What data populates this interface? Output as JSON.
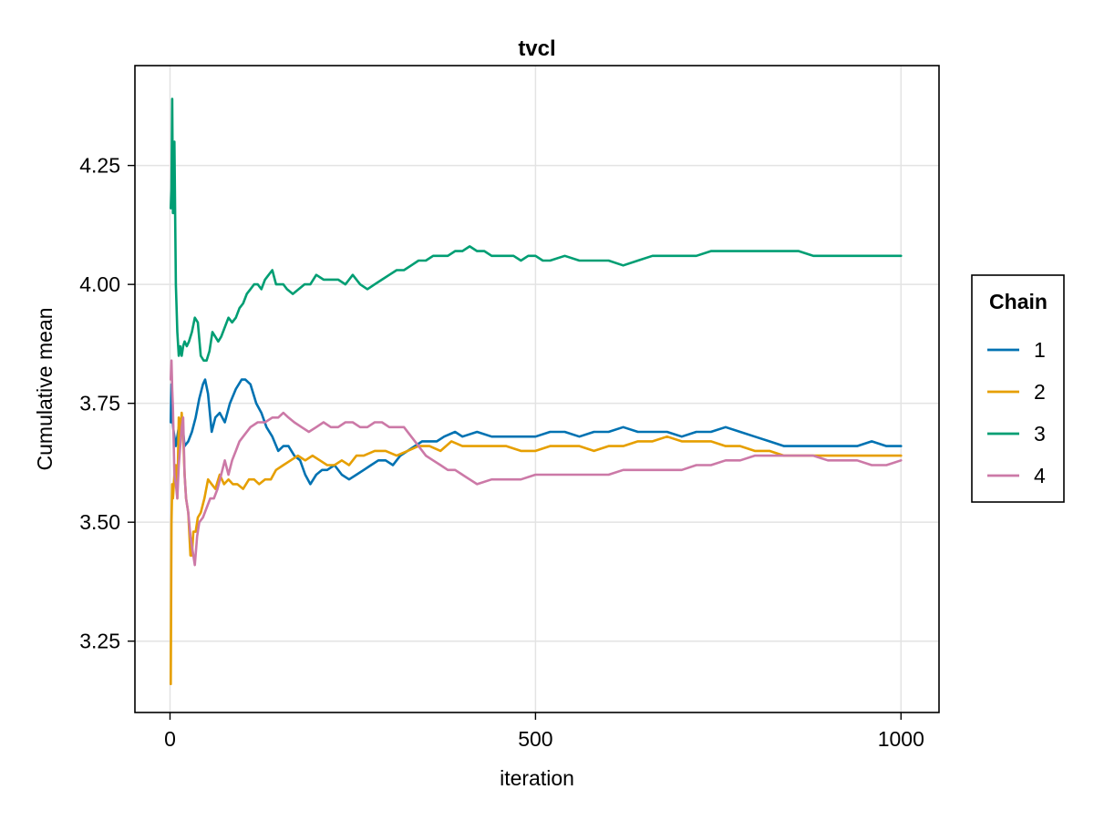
{
  "chart_data": {
    "type": "line",
    "title": "tvcl",
    "xlabel": "iteration",
    "ylabel": "Cumulative mean",
    "xlim": [
      -48,
      1052
    ],
    "ylim": [
      3.1,
      4.46
    ],
    "xticks": [
      0,
      500,
      1000
    ],
    "xtick_labels": [
      "0",
      "500",
      "1000"
    ],
    "yticks": [
      3.25,
      3.5,
      3.75,
      4.0,
      4.25
    ],
    "ytick_labels": [
      "3.25",
      "3.50",
      "3.75",
      "4.00",
      "4.25"
    ],
    "grid": true,
    "legend": {
      "title": "Chain",
      "position": "right"
    },
    "series": [
      {
        "name": "1",
        "color": "#0072b2",
        "x": [
          1,
          2,
          3,
          5,
          8,
          12,
          16,
          20,
          25,
          30,
          35,
          40,
          45,
          48,
          52,
          57,
          62,
          68,
          75,
          82,
          90,
          98,
          103,
          110,
          118,
          125,
          132,
          140,
          148,
          155,
          162,
          170,
          178,
          185,
          192,
          200,
          208,
          215,
          225,
          235,
          245,
          255,
          265,
          275,
          285,
          295,
          305,
          315,
          325,
          335,
          345,
          355,
          365,
          375,
          390,
          400,
          420,
          440,
          460,
          480,
          500,
          520,
          540,
          560,
          580,
          600,
          620,
          640,
          660,
          680,
          700,
          720,
          740,
          760,
          780,
          800,
          820,
          840,
          860,
          880,
          900,
          920,
          940,
          960,
          980,
          1000
        ],
        "y": [
          3.71,
          3.79,
          3.72,
          3.69,
          3.66,
          3.7,
          3.72,
          3.66,
          3.67,
          3.69,
          3.72,
          3.76,
          3.79,
          3.8,
          3.77,
          3.69,
          3.72,
          3.73,
          3.71,
          3.75,
          3.78,
          3.8,
          3.8,
          3.79,
          3.75,
          3.73,
          3.7,
          3.68,
          3.65,
          3.66,
          3.66,
          3.64,
          3.63,
          3.6,
          3.58,
          3.6,
          3.61,
          3.61,
          3.62,
          3.6,
          3.59,
          3.6,
          3.61,
          3.62,
          3.63,
          3.63,
          3.62,
          3.64,
          3.65,
          3.66,
          3.67,
          3.67,
          3.67,
          3.68,
          3.69,
          3.68,
          3.69,
          3.68,
          3.68,
          3.68,
          3.68,
          3.69,
          3.69,
          3.68,
          3.69,
          3.69,
          3.7,
          3.69,
          3.69,
          3.69,
          3.68,
          3.69,
          3.69,
          3.7,
          3.69,
          3.68,
          3.67,
          3.66,
          3.66,
          3.66,
          3.66,
          3.66,
          3.66,
          3.67,
          3.66,
          3.66
        ]
      },
      {
        "name": "2",
        "color": "#e69f00",
        "x": [
          1,
          2,
          3,
          4,
          6,
          8,
          10,
          12,
          14,
          16,
          18,
          20,
          22,
          25,
          28,
          30,
          32,
          35,
          38,
          42,
          47,
          52,
          57,
          62,
          68,
          74,
          80,
          86,
          92,
          100,
          108,
          115,
          122,
          130,
          138,
          145,
          155,
          165,
          175,
          185,
          195,
          205,
          215,
          225,
          235,
          245,
          255,
          265,
          280,
          295,
          310,
          325,
          340,
          355,
          370,
          385,
          400,
          420,
          440,
          460,
          480,
          500,
          520,
          540,
          560,
          580,
          600,
          620,
          640,
          660,
          680,
          700,
          720,
          740,
          760,
          780,
          800,
          820,
          840,
          860,
          880,
          900,
          920,
          940,
          960,
          980,
          1000
        ],
        "y": [
          3.16,
          3.5,
          3.58,
          3.55,
          3.6,
          3.62,
          3.55,
          3.72,
          3.68,
          3.73,
          3.68,
          3.6,
          3.55,
          3.52,
          3.43,
          3.43,
          3.48,
          3.48,
          3.51,
          3.52,
          3.55,
          3.59,
          3.58,
          3.57,
          3.6,
          3.58,
          3.59,
          3.58,
          3.58,
          3.57,
          3.59,
          3.59,
          3.58,
          3.59,
          3.59,
          3.61,
          3.62,
          3.63,
          3.64,
          3.63,
          3.64,
          3.63,
          3.62,
          3.62,
          3.63,
          3.62,
          3.64,
          3.64,
          3.65,
          3.65,
          3.64,
          3.65,
          3.66,
          3.66,
          3.65,
          3.67,
          3.66,
          3.66,
          3.66,
          3.66,
          3.65,
          3.65,
          3.66,
          3.66,
          3.66,
          3.65,
          3.66,
          3.66,
          3.67,
          3.67,
          3.68,
          3.67,
          3.67,
          3.67,
          3.66,
          3.66,
          3.65,
          3.65,
          3.64,
          3.64,
          3.64,
          3.64,
          3.64,
          3.64,
          3.64,
          3.64,
          3.64
        ]
      },
      {
        "name": "3",
        "color": "#009e73",
        "x": [
          1,
          2,
          3,
          4,
          5,
          6,
          8,
          10,
          12,
          14,
          16,
          18,
          20,
          23,
          26,
          30,
          34,
          38,
          42,
          46,
          50,
          54,
          58,
          62,
          66,
          70,
          75,
          80,
          85,
          90,
          95,
          100,
          105,
          110,
          115,
          120,
          125,
          130,
          135,
          140,
          145,
          150,
          155,
          160,
          168,
          176,
          184,
          192,
          200,
          210,
          220,
          230,
          240,
          250,
          260,
          270,
          280,
          290,
          300,
          310,
          320,
          330,
          340,
          350,
          360,
          370,
          380,
          390,
          400,
          410,
          420,
          430,
          440,
          450,
          460,
          470,
          480,
          490,
          500,
          510,
          520,
          540,
          560,
          580,
          600,
          620,
          640,
          660,
          680,
          700,
          720,
          740,
          760,
          780,
          800,
          820,
          840,
          860,
          880,
          900,
          920,
          940,
          960,
          980,
          1000
        ],
        "y": [
          4.16,
          4.2,
          4.39,
          4.15,
          4.15,
          4.3,
          4.0,
          3.9,
          3.85,
          3.87,
          3.85,
          3.87,
          3.88,
          3.87,
          3.88,
          3.9,
          3.93,
          3.92,
          3.85,
          3.84,
          3.84,
          3.86,
          3.9,
          3.89,
          3.88,
          3.89,
          3.91,
          3.93,
          3.92,
          3.93,
          3.95,
          3.96,
          3.98,
          3.99,
          4.0,
          4.0,
          3.99,
          4.01,
          4.02,
          4.03,
          4.0,
          4.0,
          4.0,
          3.99,
          3.98,
          3.99,
          4.0,
          4.0,
          4.02,
          4.01,
          4.01,
          4.01,
          4.0,
          4.02,
          4.0,
          3.99,
          4.0,
          4.01,
          4.02,
          4.03,
          4.03,
          4.04,
          4.05,
          4.05,
          4.06,
          4.06,
          4.06,
          4.07,
          4.07,
          4.08,
          4.07,
          4.07,
          4.06,
          4.06,
          4.06,
          4.06,
          4.05,
          4.06,
          4.06,
          4.05,
          4.05,
          4.06,
          4.05,
          4.05,
          4.05,
          4.04,
          4.05,
          4.06,
          4.06,
          4.06,
          4.06,
          4.07,
          4.07,
          4.07,
          4.07,
          4.07,
          4.07,
          4.07,
          4.06,
          4.06,
          4.06,
          4.06,
          4.06,
          4.06,
          4.06
        ]
      },
      {
        "name": "4",
        "color": "#cc79a7",
        "x": [
          1,
          2,
          3,
          4,
          6,
          8,
          10,
          12,
          14,
          16,
          18,
          20,
          22,
          25,
          28,
          31,
          34,
          37,
          40,
          45,
          50,
          55,
          60,
          65,
          70,
          75,
          80,
          85,
          90,
          95,
          100,
          110,
          120,
          130,
          140,
          148,
          155,
          162,
          170,
          180,
          190,
          200,
          210,
          220,
          230,
          240,
          250,
          260,
          270,
          280,
          290,
          300,
          310,
          320,
          330,
          340,
          350,
          360,
          370,
          380,
          390,
          400,
          410,
          420,
          440,
          460,
          480,
          500,
          520,
          540,
          560,
          580,
          600,
          620,
          640,
          660,
          680,
          700,
          720,
          740,
          760,
          780,
          800,
          820,
          840,
          860,
          880,
          900,
          920,
          940,
          960,
          980,
          1000
        ],
        "y": [
          3.8,
          3.84,
          3.78,
          3.74,
          3.6,
          3.58,
          3.55,
          3.62,
          3.66,
          3.7,
          3.72,
          3.6,
          3.55,
          3.52,
          3.47,
          3.44,
          3.41,
          3.47,
          3.5,
          3.51,
          3.53,
          3.55,
          3.55,
          3.57,
          3.6,
          3.63,
          3.6,
          3.63,
          3.65,
          3.67,
          3.68,
          3.7,
          3.71,
          3.71,
          3.72,
          3.72,
          3.73,
          3.72,
          3.71,
          3.7,
          3.69,
          3.7,
          3.71,
          3.7,
          3.7,
          3.71,
          3.71,
          3.7,
          3.7,
          3.71,
          3.71,
          3.7,
          3.7,
          3.7,
          3.68,
          3.66,
          3.64,
          3.63,
          3.62,
          3.61,
          3.61,
          3.6,
          3.59,
          3.58,
          3.59,
          3.59,
          3.59,
          3.6,
          3.6,
          3.6,
          3.6,
          3.6,
          3.6,
          3.61,
          3.61,
          3.61,
          3.61,
          3.61,
          3.62,
          3.62,
          3.63,
          3.63,
          3.64,
          3.64,
          3.64,
          3.64,
          3.64,
          3.63,
          3.63,
          3.63,
          3.62,
          3.62,
          3.63
        ]
      }
    ]
  }
}
